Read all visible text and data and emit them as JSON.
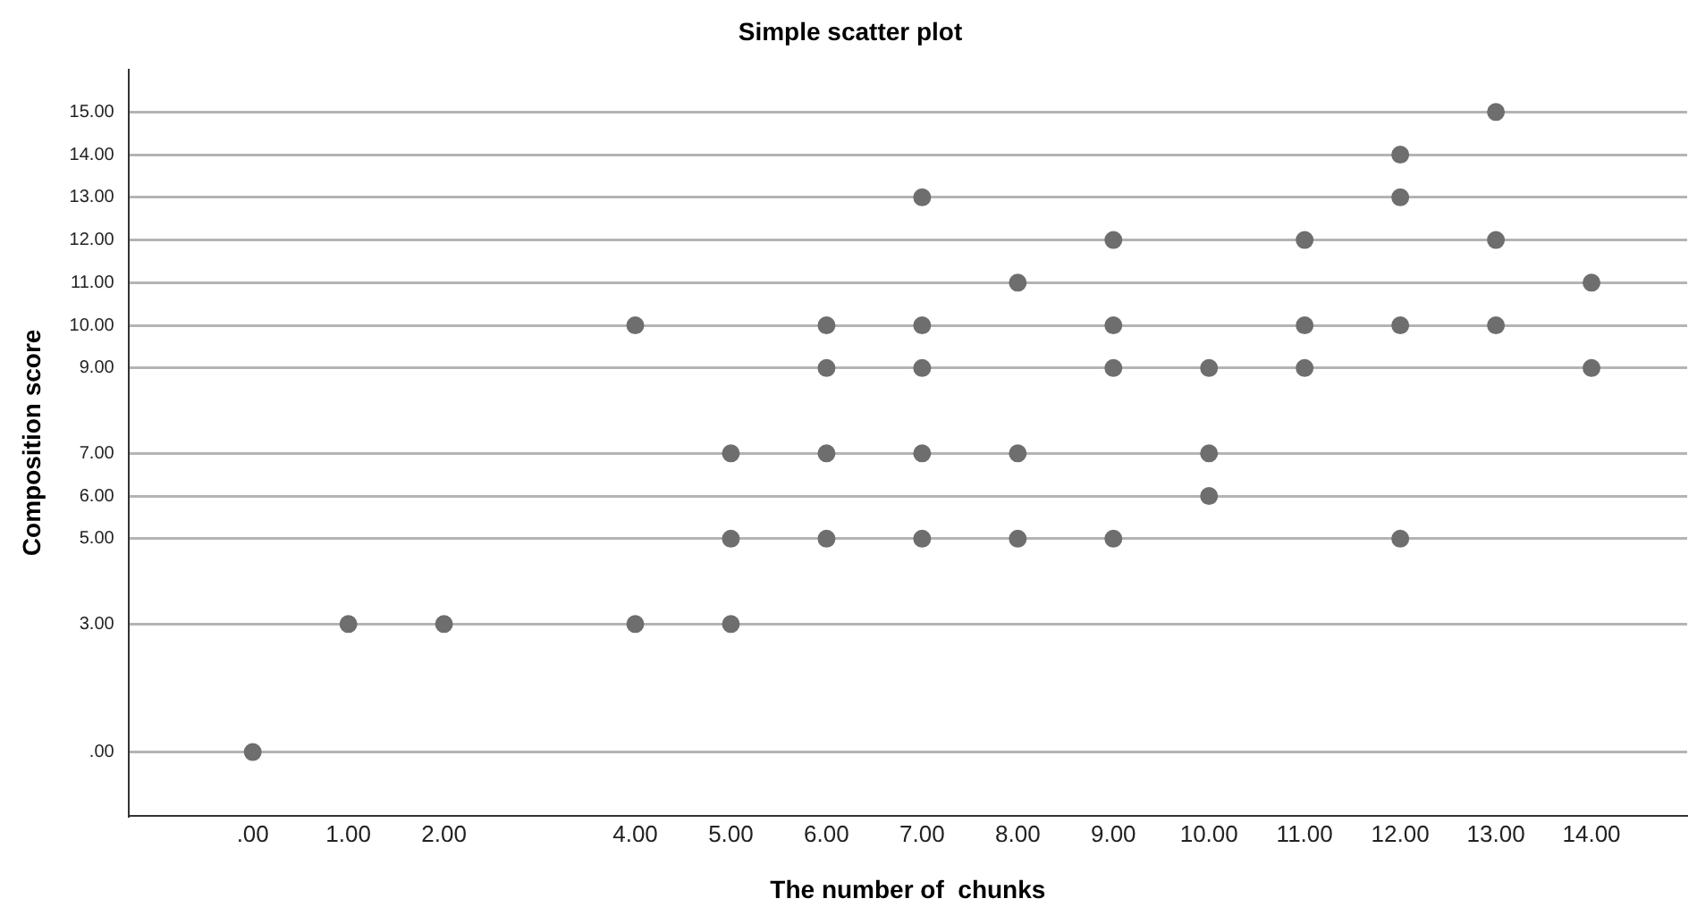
{
  "chart_data": {
    "type": "scatter",
    "title": "Simple scatter plot",
    "xlabel": "The number of  chunks",
    "ylabel": "Composition score",
    "x": [
      0,
      1,
      2,
      4,
      4,
      5,
      5,
      5,
      6,
      6,
      6,
      6,
      7,
      7,
      7,
      7,
      7,
      8,
      8,
      8,
      9,
      9,
      9,
      9,
      10,
      10,
      10,
      11,
      11,
      11,
      12,
      12,
      12,
      12,
      13,
      13,
      13,
      14,
      14
    ],
    "values": [
      0,
      3,
      3,
      3,
      10,
      3,
      5,
      7,
      5,
      7,
      9,
      10,
      5,
      7,
      9,
      10,
      13,
      5,
      7,
      11,
      5,
      9,
      10,
      12,
      6,
      7,
      9,
      9,
      10,
      12,
      5,
      10,
      13,
      14,
      10,
      12,
      15,
      9,
      11
    ],
    "color": "#6e6e6e",
    "marker": "circle",
    "grid": "y",
    "legend": false,
    "xlim": [
      -1.3,
      15
    ],
    "xticks": [
      {
        "value": 0,
        "label": ".00"
      },
      {
        "value": 1,
        "label": "1.00"
      },
      {
        "value": 2,
        "label": "2.00"
      },
      {
        "value": 4,
        "label": "4.00"
      },
      {
        "value": 5,
        "label": "5.00"
      },
      {
        "value": 6,
        "label": "6.00"
      },
      {
        "value": 7,
        "label": "7.00"
      },
      {
        "value": 8,
        "label": "8.00"
      },
      {
        "value": 9,
        "label": "9.00"
      },
      {
        "value": 10,
        "label": "10.00"
      },
      {
        "value": 11,
        "label": "11.00"
      },
      {
        "value": 12,
        "label": "12.00"
      },
      {
        "value": 13,
        "label": "13.00"
      },
      {
        "value": 14,
        "label": "14.00"
      }
    ],
    "ylim": [
      -1.5,
      16
    ],
    "yticks": [
      {
        "value": 0,
        "label": ".00"
      },
      {
        "value": 3,
        "label": "3.00"
      },
      {
        "value": 5,
        "label": "5.00"
      },
      {
        "value": 6,
        "label": "6.00"
      },
      {
        "value": 7,
        "label": "7.00"
      },
      {
        "value": 9,
        "label": "9.00"
      },
      {
        "value": 10,
        "label": "10.00"
      },
      {
        "value": 11,
        "label": "11.00"
      },
      {
        "value": 12,
        "label": "12.00"
      },
      {
        "value": 13,
        "label": "13.00"
      },
      {
        "value": 14,
        "label": "14.00"
      },
      {
        "value": 15,
        "label": "15.00"
      }
    ]
  }
}
